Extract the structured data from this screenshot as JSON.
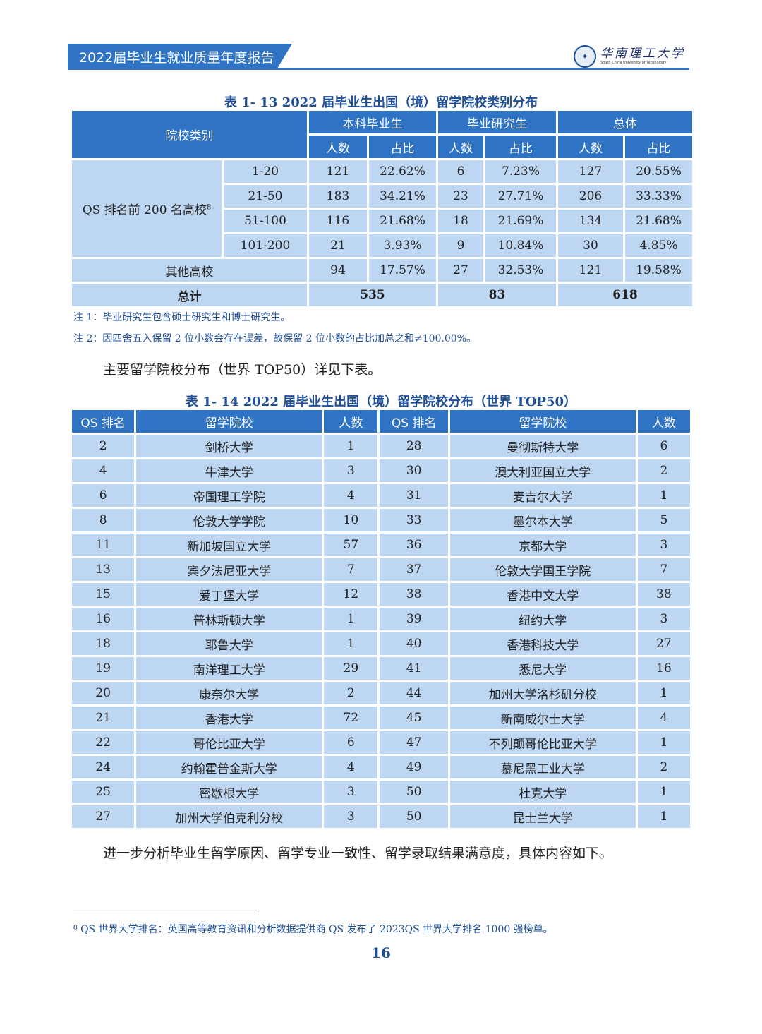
{
  "header": {
    "title": "2022届毕业生就业质量年度报告",
    "logo_cn": "华南理工大学",
    "logo_en": "South China University of Technology"
  },
  "table13": {
    "caption": "表 1- 13  2022 届毕业生出国（境）留学院校类别分布",
    "h_category": "院校类别",
    "h_groups": [
      "本科毕业生",
      "毕业研究生",
      "总体"
    ],
    "h_count": "人数",
    "h_ratio": "占比",
    "qs_label": "QS 排名前 200 名高校",
    "qs_sup": "8",
    "qs_rows": [
      {
        "range": "1-20",
        "ug_n": "121",
        "ug_p": "22.62%",
        "gr_n": "6",
        "gr_p": "7.23%",
        "all_n": "127",
        "all_p": "20.55%"
      },
      {
        "range": "21-50",
        "ug_n": "183",
        "ug_p": "34.21%",
        "gr_n": "23",
        "gr_p": "27.71%",
        "all_n": "206",
        "all_p": "33.33%"
      },
      {
        "range": "51-100",
        "ug_n": "116",
        "ug_p": "21.68%",
        "gr_n": "18",
        "gr_p": "21.69%",
        "all_n": "134",
        "all_p": "21.68%"
      },
      {
        "range": "101-200",
        "ug_n": "21",
        "ug_p": "3.93%",
        "gr_n": "9",
        "gr_p": "10.84%",
        "all_n": "30",
        "all_p": "4.85%"
      }
    ],
    "other": {
      "label": "其他高校",
      "ug_n": "94",
      "ug_p": "17.57%",
      "gr_n": "27",
      "gr_p": "32.53%",
      "all_n": "121",
      "all_p": "19.58%"
    },
    "total": {
      "label": "总计",
      "ug": "535",
      "gr": "83",
      "all": "618"
    }
  },
  "notes": {
    "note1": "注 1：毕业研究生包含硕士研究生和博士研究生。",
    "note2": "注 2：因四舍五入保留 2 位小数会存在误差，故保留 2 位小数的占比加总之和≠100.00%。"
  },
  "para1": "主要留学院校分布（世界 TOP50）详见下表。",
  "table14": {
    "caption": "表 1- 14  2022 届毕业生出国（境）留学院校分布（世界 TOP50）",
    "headers": [
      "QS 排名",
      "留学院校",
      "人数",
      "QS 排名",
      "留学院校",
      "人数"
    ],
    "rows": [
      [
        "2",
        "剑桥大学",
        "1",
        "28",
        "曼彻斯特大学",
        "6"
      ],
      [
        "4",
        "牛津大学",
        "3",
        "30",
        "澳大利亚国立大学",
        "2"
      ],
      [
        "6",
        "帝国理工学院",
        "4",
        "31",
        "麦吉尔大学",
        "1"
      ],
      [
        "8",
        "伦敦大学学院",
        "10",
        "33",
        "墨尔本大学",
        "5"
      ],
      [
        "11",
        "新加坡国立大学",
        "57",
        "36",
        "京都大学",
        "3"
      ],
      [
        "13",
        "宾夕法尼亚大学",
        "7",
        "37",
        "伦敦大学国王学院",
        "7"
      ],
      [
        "15",
        "爱丁堡大学",
        "12",
        "38",
        "香港中文大学",
        "38"
      ],
      [
        "16",
        "普林斯顿大学",
        "1",
        "39",
        "纽约大学",
        "3"
      ],
      [
        "18",
        "耶鲁大学",
        "1",
        "40",
        "香港科技大学",
        "27"
      ],
      [
        "19",
        "南洋理工大学",
        "29",
        "41",
        "悉尼大学",
        "16"
      ],
      [
        "20",
        "康奈尔大学",
        "2",
        "44",
        "加州大学洛杉矶分校",
        "1"
      ],
      [
        "21",
        "香港大学",
        "72",
        "45",
        "新南威尔士大学",
        "4"
      ],
      [
        "22",
        "哥伦比亚大学",
        "6",
        "47",
        "不列颠哥伦比亚大学",
        "1"
      ],
      [
        "24",
        "约翰霍普金斯大学",
        "4",
        "49",
        "慕尼黑工业大学",
        "2"
      ],
      [
        "25",
        "密歇根大学",
        "3",
        "50",
        "杜克大学",
        "1"
      ],
      [
        "27",
        "加州大学伯克利分校",
        "3",
        "50",
        "昆士兰大学",
        "1"
      ]
    ]
  },
  "para2": "进一步分析毕业生留学原因、留学专业一致性、留学录取结果满意度，具体内容如下。",
  "footnote": "⁸ QS 世界大学排名：英国高等教育资讯和分析数据提供商 QS 发布了 2023QS 世界大学排名 1000 强榜单。",
  "page_number": "16"
}
